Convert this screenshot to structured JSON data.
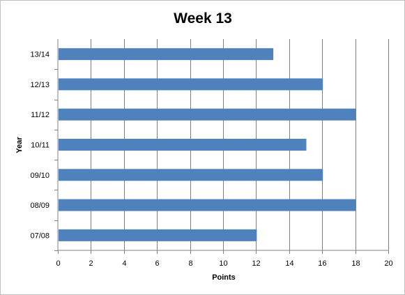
{
  "chart_data": {
    "type": "bar",
    "orientation": "horizontal",
    "title": "Week 13",
    "xlabel": "Points",
    "ylabel": "Year",
    "categories": [
      "07/08",
      "08/09",
      "09/10",
      "10/11",
      "11/12",
      "12/13",
      "13/14"
    ],
    "values": [
      12,
      18,
      16,
      15,
      18,
      16,
      13
    ],
    "xlim": [
      0,
      20
    ],
    "x_ticks": [
      "0",
      "2",
      "4",
      "6",
      "8",
      "10",
      "12",
      "14",
      "16",
      "18",
      "20"
    ],
    "grid": "vertical",
    "legend": "none",
    "bar_color": "#4f81bd",
    "grid_color": "#808080"
  }
}
